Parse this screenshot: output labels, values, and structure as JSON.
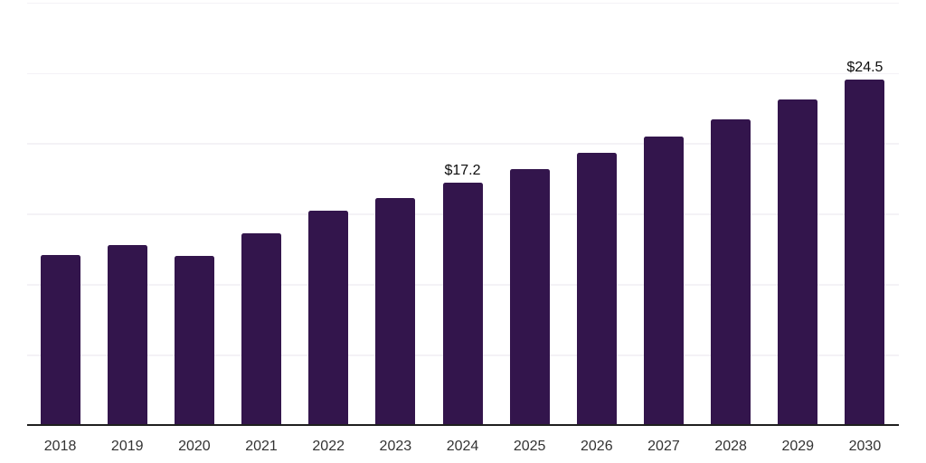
{
  "chart_data": {
    "type": "bar",
    "title": "",
    "xlabel": "",
    "ylabel": "",
    "categories": [
      "2018",
      "2019",
      "2020",
      "2021",
      "2022",
      "2023",
      "2024",
      "2025",
      "2026",
      "2027",
      "2028",
      "2029",
      "2030"
    ],
    "values": [
      12.1,
      12.8,
      12.0,
      13.6,
      15.2,
      16.1,
      17.2,
      18.2,
      19.3,
      20.5,
      21.7,
      23.1,
      24.5
    ],
    "point_labels": [
      "",
      "",
      "",
      "",
      "",
      "",
      "$17.2",
      "",
      "",
      "",
      "",
      "",
      "$24.5"
    ],
    "ylim": [
      0,
      30
    ],
    "grid_step": 5,
    "grid": "horizontal",
    "legend": "none",
    "y_tick_labels_visible": false,
    "colors": {
      "background": "#ffffff",
      "bar": "#33154c",
      "gridline": "#f4f2f6",
      "axis_line": "#1f1f1f",
      "tick_label": "#333333",
      "point_label": "#0d0d0d"
    }
  }
}
